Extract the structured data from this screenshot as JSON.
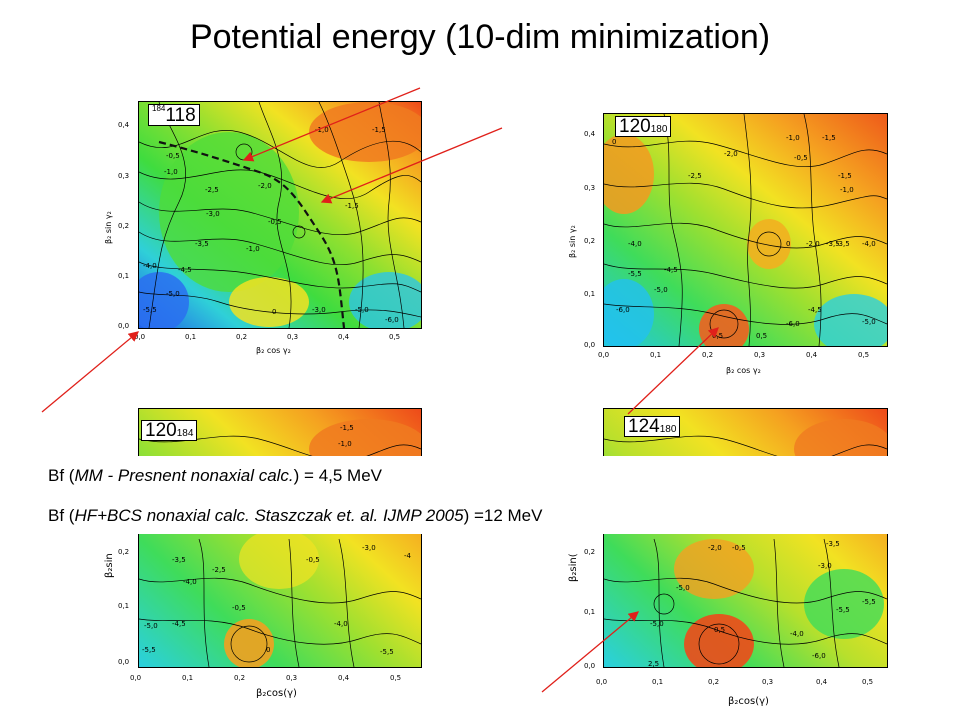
{
  "title": "Potential energy (10-dim  minimization)",
  "colors": {
    "arrow": "#e0201a",
    "path": "#111111"
  },
  "panels": [
    {
      "nucleus": {
        "mass_sup": "184",
        "z": "118"
      },
      "xlabel": "β₂ cos γ₂",
      "ylabel": "β₂ sin γ₂",
      "xticks": [
        "0,0",
        "0,1",
        "0,2",
        "0,3",
        "0,4",
        "0,5"
      ],
      "yticks": [
        "0,0",
        "0,1",
        "0,2",
        "0,3",
        "0,4"
      ],
      "contour_labels": [
        "-1,0",
        "-1,5",
        "-0,5",
        "-1,0",
        "-2,5",
        "-2,0",
        "-3,0",
        "-1,0",
        "-0,5",
        "-3,5",
        "-4,5",
        "-4,0",
        "-5,0",
        "-5,5",
        "0",
        "-3,0",
        "-5,0",
        "-1,5",
        "-6,0"
      ]
    },
    {
      "nucleus": {
        "z": "120",
        "mass_sub": "180"
      },
      "xlabel": "β₂ cos γ₂",
      "ylabel": "β₂ sin γ₂",
      "xticks": [
        "0,0",
        "0,1",
        "0,2",
        "0,3",
        "0,4",
        "0,5"
      ],
      "yticks": [
        "0,0",
        "0,1",
        "0,2",
        "0,3",
        "0,4"
      ],
      "contour_labels": [
        "0",
        "-1,0",
        "-1,5",
        "-2,0",
        "-0,5",
        "-2,5",
        "-1,0",
        "-1,5",
        "-4,0",
        "-3,5",
        "-5,5",
        "-4,5",
        "-5,0",
        "-6,0",
        "0",
        "-2,0",
        "-3,5",
        "-4,0",
        "-4,5",
        "-5,0",
        "0,5",
        "-6,0",
        "0,5"
      ]
    },
    {
      "nucleus": {
        "z": "120",
        "mass_sub": "184"
      },
      "xlabel": "β₂cos(γ)",
      "ylabel": "β₂sin",
      "xticks": [
        "0,0",
        "0,1",
        "0,2",
        "0,3",
        "0,4",
        "0,5"
      ],
      "yticks": [
        "0,0",
        "0,1",
        "0,2"
      ],
      "contour_labels": [
        "-1,5",
        "-1,0",
        "-3,5",
        "-2,5",
        "-4,0",
        "-0,5",
        "-3,0",
        "-4",
        "-5,0",
        "-4,5",
        "-0,5",
        "-4,0",
        "-5,5",
        "0",
        "-5,5"
      ]
    },
    {
      "nucleus": {
        "z": "124",
        "mass_sub": "180"
      },
      "xlabel": "β₂cos(γ)",
      "ylabel": "β₂sin(",
      "xticks": [
        "0,0",
        "0,1",
        "0,2",
        "0,3",
        "0,4",
        "0,5"
      ],
      "yticks": [
        "0,0",
        "0,1",
        "0,2"
      ],
      "contour_labels": [
        "-2,0",
        "-0,5",
        "-3,5",
        "-3,0",
        "-5,0",
        "-5,5",
        "-5,0",
        "0,5",
        "-4,0",
        "-6,0",
        "2,5",
        "-5,5"
      ]
    }
  ],
  "text": {
    "bf1_prefix": "Bf (",
    "bf1_italic": "MM - Presnent nonaxial calc.",
    "bf1_suffix": ") = 4,5 MeV",
    "bf2_prefix": "Bf (",
    "bf2_italic": "HF+BCS nonaxial calc. Staszczak et. al.  IJMP  2005",
    "bf2_suffix": ") =12 MeV"
  }
}
